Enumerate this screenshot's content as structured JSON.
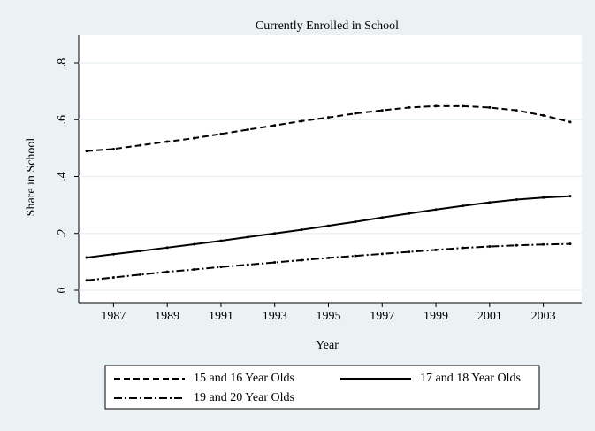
{
  "chart_data": {
    "type": "line",
    "title": "Currently Enrolled in School",
    "x_label": "Year",
    "y_label": "Share in School",
    "x": [
      1986,
      1987,
      1988,
      1989,
      1990,
      1991,
      1992,
      1993,
      1994,
      1995,
      1996,
      1997,
      1998,
      1999,
      2000,
      2001,
      2002,
      2003,
      2004
    ],
    "series": [
      {
        "name": "15 and 16 Year Olds",
        "color": "#000000",
        "dash": "7,4",
        "values": [
          0.49,
          0.497,
          0.51,
          0.523,
          0.535,
          0.55,
          0.565,
          0.58,
          0.595,
          0.608,
          0.622,
          0.633,
          0.643,
          0.648,
          0.648,
          0.643,
          0.633,
          0.615,
          0.592
        ]
      },
      {
        "name": "17 and 18 Year Olds",
        "color": "#000000",
        "dash": "none",
        "values": [
          0.115,
          0.127,
          0.138,
          0.15,
          0.162,
          0.174,
          0.187,
          0.2,
          0.213,
          0.227,
          0.241,
          0.256,
          0.27,
          0.284,
          0.297,
          0.309,
          0.319,
          0.326,
          0.331
        ]
      },
      {
        "name": "19 and 20 Year Olds",
        "color": "#000000",
        "dash": "9,3,2,3",
        "values": [
          0.035,
          0.045,
          0.055,
          0.065,
          0.073,
          0.082,
          0.09,
          0.098,
          0.106,
          0.114,
          0.121,
          0.128,
          0.135,
          0.142,
          0.149,
          0.154,
          0.158,
          0.161,
          0.163
        ]
      }
    ],
    "xlim": [
      1986,
      2004
    ],
    "xticks": [
      1987,
      1989,
      1991,
      1993,
      1995,
      1997,
      1999,
      2001,
      2003
    ],
    "ylim": [
      0,
      0.8
    ],
    "yticks": [
      0,
      {
        "value": 0.2,
        "label": ".2"
      },
      {
        "value": 0.4,
        "label": ".4"
      },
      {
        "value": 0.6,
        "label": ".6"
      },
      {
        "value": 0.8,
        "label": ".8"
      }
    ],
    "grid": true
  }
}
